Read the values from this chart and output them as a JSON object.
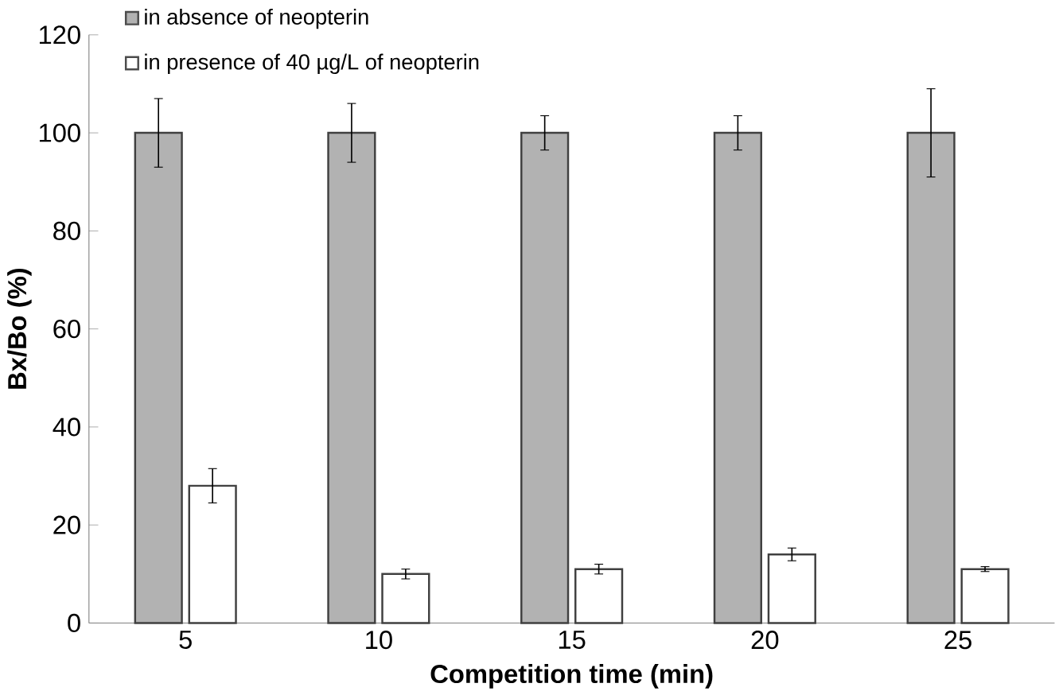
{
  "chart_data": {
    "type": "bar",
    "xlabel": "Competition time (min)",
    "ylabel": "Bx/Bo (%)",
    "categories": [
      "5",
      "10",
      "15",
      "20",
      "25"
    ],
    "series": [
      {
        "name": "in absence of neopterin",
        "color": "#b2b2b2",
        "values": [
          100,
          100,
          100,
          100,
          100
        ],
        "errors": [
          7,
          6,
          3.5,
          3.5,
          9
        ]
      },
      {
        "name": "in presence of 40 µg/L of neopterin",
        "color": "#ffffff",
        "values": [
          28,
          10,
          11,
          14,
          11
        ],
        "errors": [
          3.5,
          1,
          1,
          1.3,
          0.5
        ]
      }
    ],
    "ylim": [
      0,
      120
    ],
    "yticks": [
      0,
      20,
      40,
      60,
      80,
      100,
      120
    ],
    "grid": false,
    "legend": "top left"
  }
}
